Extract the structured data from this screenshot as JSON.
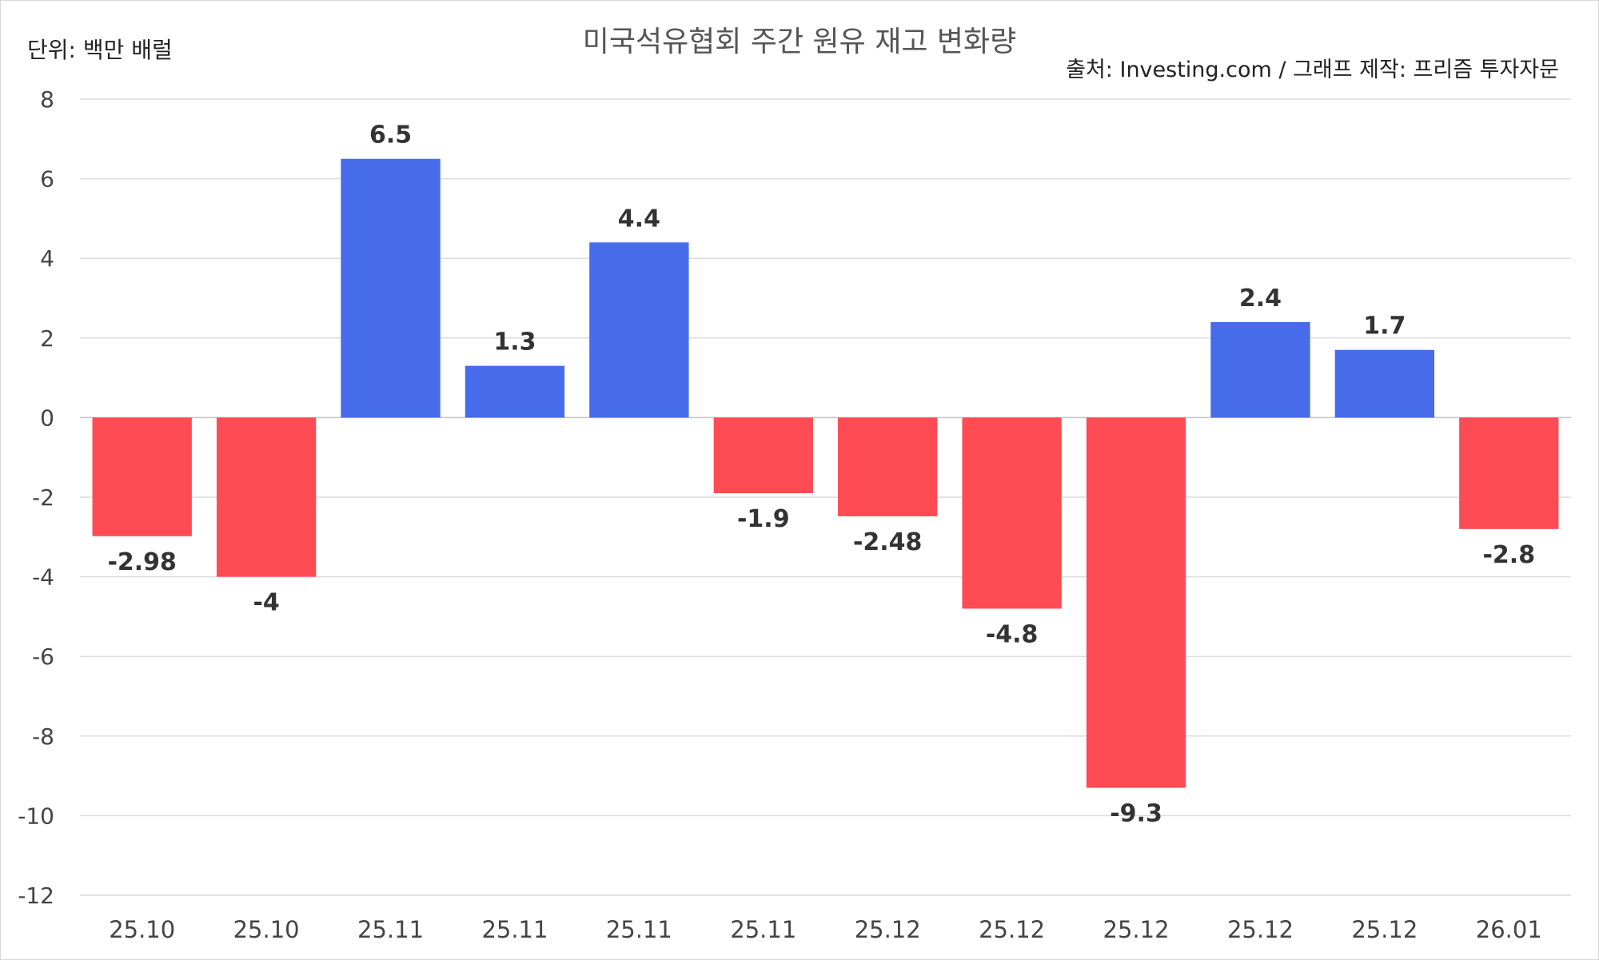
{
  "chart_data": {
    "type": "bar",
    "title": "미국석유협회 주간 원유 재고 변화량",
    "unit_label": "단위: 백만 배럴",
    "source_label": "출처: Investing.com / 그래프 제작: 프리즘 투자자문",
    "categories": [
      "25.10",
      "25.10",
      "25.11",
      "25.11",
      "25.11",
      "25.11",
      "25.12",
      "25.12",
      "25.12",
      "25.12",
      "25.12",
      "26.01"
    ],
    "values": [
      -2.98,
      -4,
      6.5,
      1.3,
      4.4,
      -1.9,
      -2.48,
      -4.8,
      -9.3,
      2.4,
      1.7,
      -2.8
    ],
    "data_labels": [
      "-2.98",
      "-4",
      "6.5",
      "1.3",
      "4.4",
      "-1.9",
      "-2.48",
      "-4.8",
      "-9.3",
      "2.4",
      "1.7",
      "-2.8"
    ],
    "ylim": [
      -12,
      8
    ],
    "yticks": [
      8,
      6,
      4,
      2,
      0,
      -2,
      -4,
      -6,
      -8,
      -10,
      -12
    ],
    "grid": true,
    "legend": "none",
    "colors": {
      "positive": "#476CEB",
      "negative": "#FF4B53"
    }
  }
}
